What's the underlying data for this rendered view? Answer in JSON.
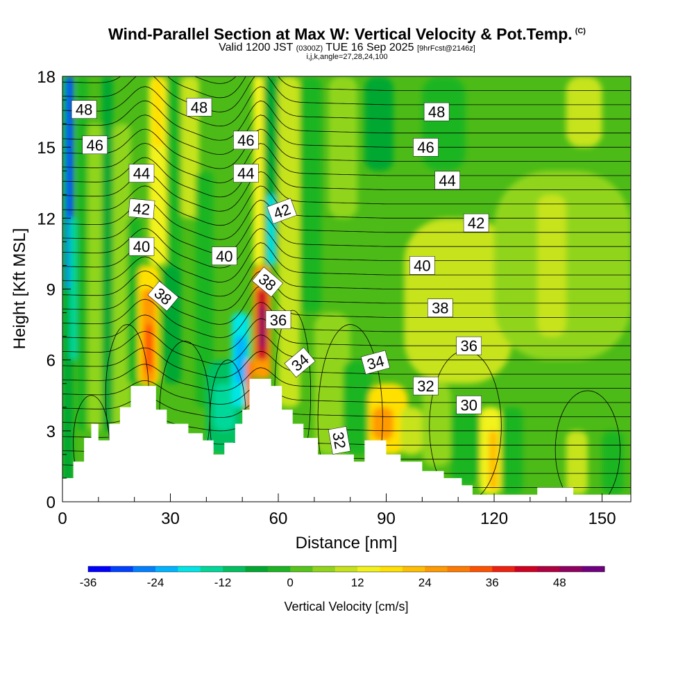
{
  "title": {
    "main": "Wind-Parallel Section at Max W: Vertical Velocity & Pot.Temp.",
    "mark": "(C)",
    "valid_a": "Valid 1200 JST",
    "valid_z": "(0300Z)",
    "valid_b": "TUE 16 Sep 2025",
    "fcst": "[9hrFcst@2146z]",
    "params": "i,j,k,angle=27,28,24,100"
  },
  "chart_data": {
    "type": "heatmap",
    "xlabel": "Distance [nm]",
    "ylabel": "Height [Kft MSL]",
    "xlim": [
      0,
      158
    ],
    "ylim": [
      0,
      18
    ],
    "x_ticks": [
      "0",
      "30",
      "60",
      "90",
      "120",
      "150"
    ],
    "y_ticks": [
      "0",
      "3",
      "6",
      "9",
      "12",
      "15",
      "18"
    ],
    "terrain_profile": [
      [
        0,
        1
      ],
      [
        3,
        1
      ],
      [
        3,
        1.7
      ],
      [
        6,
        1.7
      ],
      [
        6,
        2.7
      ],
      [
        8,
        2.7
      ],
      [
        8,
        3.3
      ],
      [
        10,
        3.3
      ],
      [
        10,
        2.6
      ],
      [
        13,
        2.6
      ],
      [
        13,
        3.3
      ],
      [
        16,
        3.3
      ],
      [
        16,
        4
      ],
      [
        19,
        4
      ],
      [
        19,
        4.9
      ],
      [
        26,
        4.9
      ],
      [
        26,
        3.9
      ],
      [
        29,
        3.9
      ],
      [
        29,
        3.3
      ],
      [
        35,
        3.3
      ],
      [
        35,
        2.9
      ],
      [
        39,
        2.9
      ],
      [
        39,
        2.6
      ],
      [
        42,
        2.6
      ],
      [
        42,
        2
      ],
      [
        45,
        2
      ],
      [
        45,
        2.5
      ],
      [
        48,
        2.5
      ],
      [
        48,
        3.3
      ],
      [
        50,
        3.3
      ],
      [
        50,
        3.9
      ],
      [
        52,
        3.9
      ],
      [
        52,
        5.2
      ],
      [
        58,
        5.2
      ],
      [
        58,
        4.9
      ],
      [
        61,
        4.9
      ],
      [
        61,
        3.9
      ],
      [
        64,
        3.9
      ],
      [
        64,
        3.3
      ],
      [
        67,
        3.3
      ],
      [
        67,
        2.7
      ],
      [
        71,
        2.7
      ],
      [
        71,
        2
      ],
      [
        77,
        2
      ],
      [
        77,
        2
      ],
      [
        81,
        2
      ],
      [
        81,
        1.7
      ],
      [
        84,
        1.7
      ],
      [
        84,
        2.6
      ],
      [
        90,
        2.6
      ],
      [
        90,
        2
      ],
      [
        94,
        2
      ],
      [
        94,
        1.7
      ],
      [
        100,
        1.7
      ],
      [
        100,
        1.3
      ],
      [
        106,
        1.3
      ],
      [
        106,
        1
      ],
      [
        111,
        1
      ],
      [
        111,
        0.7
      ],
      [
        114,
        0.7
      ],
      [
        114,
        0.3
      ],
      [
        132,
        0.3
      ],
      [
        132,
        0.6
      ],
      [
        142,
        0.6
      ],
      [
        142,
        0.3
      ],
      [
        158,
        0.3
      ]
    ],
    "velocity_cells": [
      {
        "x": [
          0,
          3
        ],
        "y": [
          0,
          18
        ],
        "value": -10
      },
      {
        "x": [
          1,
          3
        ],
        "y": [
          9,
          18
        ],
        "value": -27
      },
      {
        "x": [
          1.5,
          2.6
        ],
        "y": [
          12,
          18
        ],
        "value": -36
      },
      {
        "x": [
          2,
          4
        ],
        "y": [
          6,
          12
        ],
        "value": -18
      },
      {
        "x": [
          4,
          7
        ],
        "y": [
          3,
          18
        ],
        "value": -6
      },
      {
        "x": [
          7,
          11
        ],
        "y": [
          3,
          16
        ],
        "value": 4
      },
      {
        "x": [
          11,
          14
        ],
        "y": [
          3,
          18
        ],
        "value": -8
      },
      {
        "x": [
          14,
          19
        ],
        "y": [
          3,
          16
        ],
        "value": 4
      },
      {
        "x": [
          18,
          22
        ],
        "y": [
          5,
          12
        ],
        "value": -4
      },
      {
        "x": [
          21,
          27
        ],
        "y": [
          4.9,
          10
        ],
        "value": 14
      },
      {
        "x": [
          22,
          26
        ],
        "y": [
          5,
          9
        ],
        "value": 24
      },
      {
        "x": [
          23,
          25
        ],
        "y": [
          5.5,
          7.5
        ],
        "value": 30
      },
      {
        "x": [
          24,
          29
        ],
        "y": [
          10,
          18
        ],
        "value": 10
      },
      {
        "x": [
          25,
          28
        ],
        "y": [
          15,
          18
        ],
        "value": 16
      },
      {
        "x": [
          28,
          33
        ],
        "y": [
          5,
          10
        ],
        "value": -8
      },
      {
        "x": [
          29,
          33
        ],
        "y": [
          10,
          18
        ],
        "value": -4
      },
      {
        "x": [
          33,
          38
        ],
        "y": [
          12,
          18
        ],
        "value": 6
      },
      {
        "x": [
          37,
          42
        ],
        "y": [
          4,
          14
        ],
        "value": -6
      },
      {
        "x": [
          40,
          50
        ],
        "y": [
          2,
          6
        ],
        "value": -14
      },
      {
        "x": [
          42,
          48
        ],
        "y": [
          3,
          5
        ],
        "value": -18
      },
      {
        "x": [
          47,
          52
        ],
        "y": [
          4,
          8
        ],
        "value": -20
      },
      {
        "x": [
          48,
          51
        ],
        "y": [
          5,
          7
        ],
        "value": -26
      },
      {
        "x": [
          51,
          53
        ],
        "y": [
          3.9,
          6
        ],
        "value": 28
      },
      {
        "x": [
          53,
          58
        ],
        "y": [
          5.2,
          10
        ],
        "value": 24
      },
      {
        "x": [
          54,
          57
        ],
        "y": [
          6,
          9
        ],
        "value": 38
      },
      {
        "x": [
          54.8,
          56.5
        ],
        "y": [
          6.5,
          8.3
        ],
        "value": 46
      },
      {
        "x": [
          53,
          56
        ],
        "y": [
          10,
          18
        ],
        "value": 10
      },
      {
        "x": [
          56,
          60
        ],
        "y": [
          10,
          18
        ],
        "value": -10
      },
      {
        "x": [
          57,
          59
        ],
        "y": [
          10,
          13
        ],
        "value": -20
      },
      {
        "x": [
          60,
          66
        ],
        "y": [
          4,
          18
        ],
        "value": 6
      },
      {
        "x": [
          66,
          72
        ],
        "y": [
          8,
          18
        ],
        "value": -6
      },
      {
        "x": [
          70,
          80
        ],
        "y": [
          2,
          8
        ],
        "value": 4
      },
      {
        "x": [
          78,
          86
        ],
        "y": [
          2,
          6
        ],
        "value": -6
      },
      {
        "x": [
          85,
          96
        ],
        "y": [
          2,
          5
        ],
        "value": 14
      },
      {
        "x": [
          86,
          92
        ],
        "y": [
          2.6,
          4
        ],
        "value": 22
      },
      {
        "x": [
          94,
          100
        ],
        "y": [
          2,
          4
        ],
        "value": 8
      },
      {
        "x": [
          100,
          108
        ],
        "y": [
          1.5,
          5
        ],
        "value": 4
      },
      {
        "x": [
          108,
          116
        ],
        "y": [
          0.7,
          4
        ],
        "value": -6
      },
      {
        "x": [
          116,
          122
        ],
        "y": [
          0.3,
          4
        ],
        "value": 10
      },
      {
        "x": [
          118.5,
          121
        ],
        "y": [
          0.5,
          3
        ],
        "value": 18
      },
      {
        "x": [
          122,
          128
        ],
        "y": [
          0.3,
          4
        ],
        "value": -6
      },
      {
        "x": [
          140,
          146
        ],
        "y": [
          0.3,
          3
        ],
        "value": 8
      },
      {
        "x": [
          150,
          156
        ],
        "y": [
          0.3,
          3
        ],
        "value": -6
      },
      {
        "x": [
          95,
          125
        ],
        "y": [
          5,
          12
        ],
        "value": 6
      },
      {
        "x": [
          120,
          158
        ],
        "y": [
          6,
          14
        ],
        "value": 4
      },
      {
        "x": [
          132,
          140
        ],
        "y": [
          7,
          13
        ],
        "value": 8
      },
      {
        "x": [
          100,
          112
        ],
        "y": [
          14,
          18
        ],
        "value": -6
      },
      {
        "x": [
          84,
          92
        ],
        "y": [
          14,
          18
        ],
        "value": -8
      },
      {
        "x": [
          74,
          82
        ],
        "y": [
          12,
          18
        ],
        "value": 4
      },
      {
        "x": [
          140,
          150
        ],
        "y": [
          15,
          18
        ],
        "value": 8
      }
    ],
    "isentrope_labels": [
      {
        "label": "48",
        "x": 6,
        "y": 16.6,
        "angle": 0
      },
      {
        "label": "46",
        "x": 9,
        "y": 15.1,
        "angle": 0
      },
      {
        "label": "44",
        "x": 22,
        "y": 13.9,
        "angle": 0
      },
      {
        "label": "42",
        "x": 22,
        "y": 12.4,
        "angle": 5
      },
      {
        "label": "40",
        "x": 22,
        "y": 10.8,
        "angle": 0
      },
      {
        "label": "38",
        "x": 28,
        "y": 8.7,
        "angle": 40
      },
      {
        "label": "48",
        "x": 38,
        "y": 16.7,
        "angle": 0
      },
      {
        "label": "46",
        "x": 51,
        "y": 15.3,
        "angle": 0
      },
      {
        "label": "44",
        "x": 51,
        "y": 13.9,
        "angle": 0
      },
      {
        "label": "42",
        "x": 61,
        "y": 12.3,
        "angle": -20
      },
      {
        "label": "40",
        "x": 45,
        "y": 10.4,
        "angle": 0
      },
      {
        "label": "38",
        "x": 57,
        "y": 9.3,
        "angle": 40
      },
      {
        "label": "36",
        "x": 60,
        "y": 7.7,
        "angle": 0
      },
      {
        "label": "34",
        "x": 66,
        "y": 5.9,
        "angle": -40
      },
      {
        "label": "34",
        "x": 87,
        "y": 5.9,
        "angle": -15
      },
      {
        "label": "32",
        "x": 77,
        "y": 2.6,
        "angle": 80
      },
      {
        "label": "48",
        "x": 104,
        "y": 16.5,
        "angle": 0
      },
      {
        "label": "46",
        "x": 101,
        "y": 15.0,
        "angle": 0
      },
      {
        "label": "44",
        "x": 107,
        "y": 13.6,
        "angle": 0
      },
      {
        "label": "42",
        "x": 115,
        "y": 11.8,
        "angle": 0
      },
      {
        "label": "40",
        "x": 100,
        "y": 10.0,
        "angle": 0
      },
      {
        "label": "38",
        "x": 105,
        "y": 8.2,
        "angle": 0
      },
      {
        "label": "36",
        "x": 113,
        "y": 6.6,
        "angle": 0
      },
      {
        "label": "32",
        "x": 101,
        "y": 4.9,
        "angle": 0
      },
      {
        "label": "30",
        "x": 113,
        "y": 4.1,
        "angle": 0
      }
    ],
    "colorbar": {
      "label": "Vertical Velocity [cm/s]",
      "tick_labels": [
        "-36",
        "-24",
        "-12",
        "0",
        "12",
        "24",
        "36",
        "48"
      ],
      "colors": [
        "#0000ff",
        "#0040ff",
        "#0080ff",
        "#00b4ff",
        "#00e6e6",
        "#00d89a",
        "#00c060",
        "#00a830",
        "#1ab520",
        "#55c51a",
        "#90d51a",
        "#c6e31a",
        "#f2f21a",
        "#ffe000",
        "#ffbf00",
        "#ff9a00",
        "#ff7a00",
        "#ff5200",
        "#f02010",
        "#d00020",
        "#b00040",
        "#900060",
        "#700080"
      ]
    }
  }
}
